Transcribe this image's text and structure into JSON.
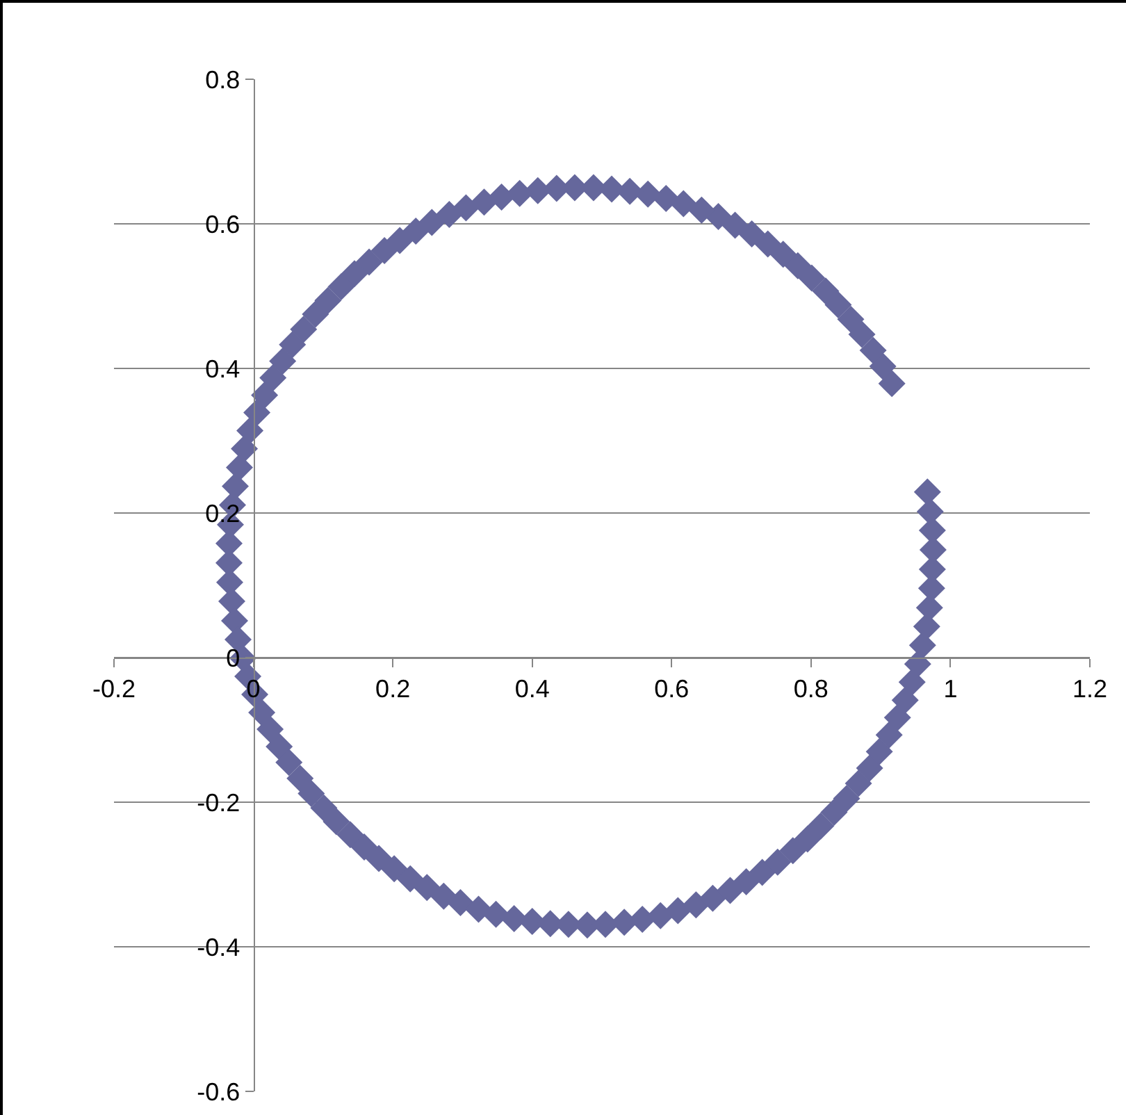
{
  "chart_data": {
    "type": "scatter",
    "marker": "diamond",
    "grid": "y",
    "xlim": [
      -0.2,
      1.2
    ],
    "xticks": [
      -0.2,
      0,
      0.2,
      0.4,
      0.6,
      0.8,
      1,
      1.2
    ],
    "ylim": [
      -0.6,
      0.8
    ],
    "yticks": [
      -0.6,
      -0.4,
      -0.2,
      0,
      0.2,
      0.4,
      0.6,
      0.8
    ],
    "series": [
      {
        "color": "#65679c",
        "x": [
          0.916,
          0.903,
          0.889,
          0.873,
          0.857,
          0.839,
          0.821,
          0.801,
          0.781,
          0.76,
          0.738,
          0.715,
          0.691,
          0.667,
          0.643,
          0.617,
          0.592,
          0.566,
          0.54,
          0.514,
          0.488,
          0.461,
          0.435,
          0.408,
          0.382,
          0.356,
          0.331,
          0.305,
          0.281,
          0.256,
          0.233,
          0.21,
          0.188,
          0.166,
          0.145,
          0.126,
          0.107,
          0.089,
          0.072,
          0.056,
          0.042,
          0.028,
          0.016,
          0.005,
          -0.005,
          -0.013,
          -0.02,
          -0.026,
          -0.03,
          -0.033,
          -0.035,
          -0.035,
          -0.034,
          -0.031,
          -0.027,
          -0.022,
          -0.015,
          -0.008,
          0.002,
          0.012,
          0.024,
          0.037,
          0.051,
          0.067,
          0.083,
          0.101,
          0.119,
          0.139,
          0.159,
          0.18,
          0.202,
          0.225,
          0.249,
          0.273,
          0.297,
          0.323,
          0.348,
          0.374,
          0.4,
          0.426,
          0.452,
          0.479,
          0.505,
          0.532,
          0.558,
          0.584,
          0.609,
          0.635,
          0.659,
          0.684,
          0.707,
          0.73,
          0.752,
          0.774,
          0.795,
          0.814,
          0.833,
          0.851,
          0.868,
          0.884,
          0.898,
          0.912,
          0.924,
          0.935,
          0.945,
          0.953,
          0.96,
          0.966,
          0.97,
          0.973,
          0.974,
          0.975,
          0.974,
          0.971,
          0.967
        ],
        "values": [
          0.379,
          0.403,
          0.425,
          0.447,
          0.468,
          0.488,
          0.507,
          0.525,
          0.542,
          0.558,
          0.572,
          0.586,
          0.598,
          0.61,
          0.619,
          0.628,
          0.635,
          0.641,
          0.645,
          0.648,
          0.65,
          0.65,
          0.649,
          0.646,
          0.642,
          0.637,
          0.63,
          0.622,
          0.613,
          0.602,
          0.59,
          0.577,
          0.563,
          0.547,
          0.531,
          0.513,
          0.494,
          0.475,
          0.454,
          0.433,
          0.41,
          0.387,
          0.363,
          0.339,
          0.314,
          0.289,
          0.263,
          0.237,
          0.211,
          0.184,
          0.158,
          0.131,
          0.104,
          0.078,
          0.051,
          0.025,
          -0.001,
          -0.026,
          -0.051,
          -0.076,
          -0.099,
          -0.123,
          -0.145,
          -0.167,
          -0.188,
          -0.208,
          -0.227,
          -0.245,
          -0.262,
          -0.278,
          -0.292,
          -0.306,
          -0.318,
          -0.33,
          -0.339,
          -0.348,
          -0.355,
          -0.361,
          -0.365,
          -0.368,
          -0.369,
          -0.37,
          -0.369,
          -0.366,
          -0.362,
          -0.357,
          -0.35,
          -0.342,
          -0.333,
          -0.322,
          -0.31,
          -0.297,
          -0.283,
          -0.267,
          -0.251,
          -0.233,
          -0.214,
          -0.195,
          -0.174,
          -0.153,
          -0.13,
          -0.107,
          -0.083,
          -0.059,
          -0.034,
          -0.009,
          0.017,
          0.043,
          0.069,
          0.096,
          0.122,
          0.149,
          0.176,
          0.202,
          0.229
        ]
      }
    ]
  }
}
